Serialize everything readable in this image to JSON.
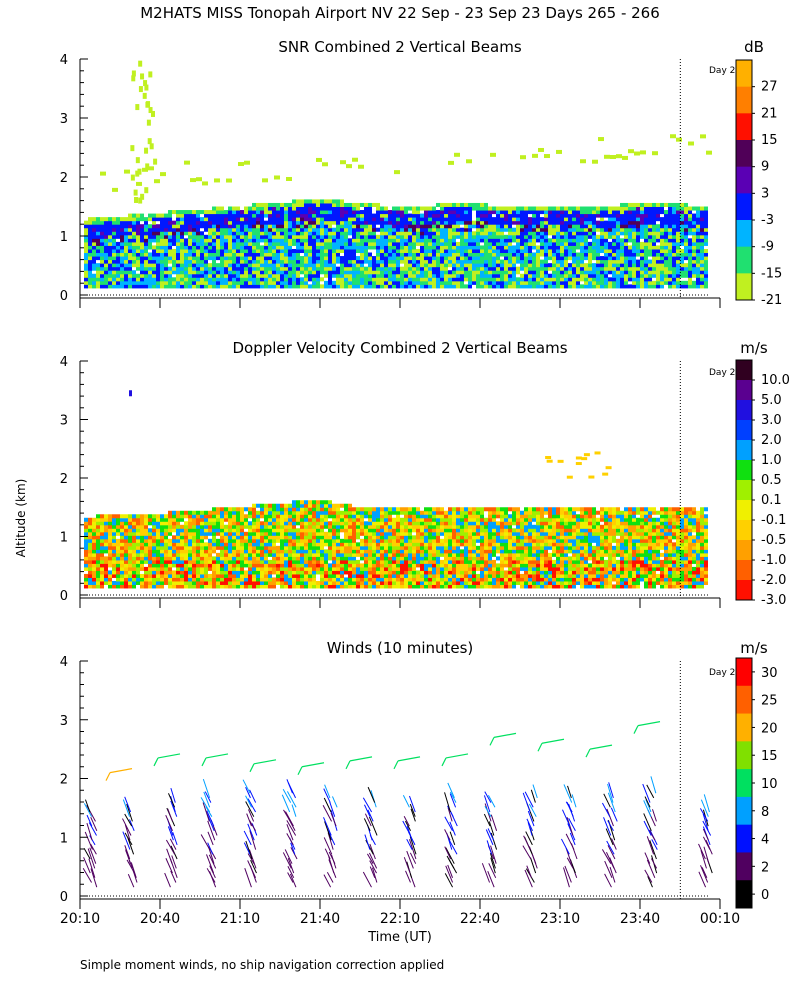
{
  "title": "M2HATS MISS Tonopah Airport NV  22 Sep - 23 Sep 23 Days 265 - 266",
  "shared": {
    "ylabel": "Altitude (km)",
    "xlabel": "Time (UT)",
    "x_ticks": [
      "20:10",
      "20:40",
      "21:10",
      "21:40",
      "22:10",
      "22:40",
      "23:10",
      "23:40",
      "00:10"
    ],
    "y_ticks": [
      "0",
      "1",
      "2",
      "3",
      "4"
    ],
    "x_range_hours": [
      20.1667,
      24.1667
    ],
    "ylim": [
      0,
      4
    ],
    "day_marker_label": "Day 2",
    "day_marker_time_hours": 24.0
  },
  "footnote": "Simple moment winds, no ship navigation correction applied",
  "chart_data": [
    {
      "type": "heatmap",
      "title": "SNR Combined 2 Vertical Beams",
      "units": "dB",
      "colorbar_labels": [
        "27",
        "21",
        "15",
        "9",
        "3",
        "-3",
        "-9",
        "-15",
        "-21"
      ],
      "colorbar_colors": [
        "#ffb000",
        "#ff7f00",
        "#ff1000",
        "#500058",
        "#5a00b4",
        "#0018ff",
        "#00b4ff",
        "#20e070",
        "#c0f020"
      ],
      "boundary_layer_top_km": [
        1.25,
        1.3,
        1.35,
        1.4,
        1.45,
        1.5,
        1.55,
        1.6,
        1.55,
        1.5,
        1.45,
        1.55,
        1.5,
        1.5,
        1.5,
        1.45,
        1.5,
        1.55,
        1.5,
        1.5
      ],
      "elevated_layer_km": [
        2.4,
        2.5,
        2.55,
        2.6
      ]
    },
    {
      "type": "heatmap",
      "title": "Doppler Velocity Combined 2 Vertical Beams",
      "units": "m/s",
      "colorbar_labels": [
        "10.0",
        "5.0",
        "3.0",
        "2.0",
        "1.0",
        "0.5",
        "0.1",
        "-0.1",
        "-0.5",
        "-1.0",
        "-2.0",
        "-3.0"
      ],
      "colorbar_colors": [
        "#300020",
        "#5a0090",
        "#2010e0",
        "#0040ff",
        "#00a0ff",
        "#10e010",
        "#a0f000",
        "#f0f000",
        "#ffd000",
        "#ffa000",
        "#ff6000",
        "#ff1000"
      ],
      "boundary_layer_top_km": [
        1.3,
        1.35,
        1.35,
        1.4,
        1.45,
        1.5,
        1.55,
        1.6,
        1.5,
        1.5,
        1.45,
        1.5,
        1.5,
        1.45,
        1.45,
        1.5,
        1.45,
        1.5,
        1.45,
        1.5
      ]
    },
    {
      "type": "scatter",
      "subtype": "wind_barbs",
      "title": "Winds (10 minutes)",
      "units": "m/s",
      "colorbar_labels": [
        "30",
        "25",
        "20",
        "15",
        "10",
        "8",
        "4",
        "2",
        "0"
      ],
      "colorbar_colors": [
        "#ff0000",
        "#ff6000",
        "#ffb000",
        "#80e000",
        "#00e060",
        "#00a0ff",
        "#0010ff",
        "#500060",
        "#000000"
      ],
      "profile_times_hours": [
        20.25,
        20.5,
        20.75,
        21.0,
        21.25,
        21.5,
        21.75,
        22.0,
        22.25,
        22.5,
        22.75,
        23.0,
        23.25,
        23.5,
        23.75,
        24.1
      ],
      "profile_top_km": [
        1.5,
        1.5,
        1.65,
        1.75,
        1.8,
        1.8,
        1.75,
        1.65,
        1.55,
        1.75,
        1.65,
        1.75,
        1.75,
        1.75,
        1.8,
        1.5
      ],
      "upper_level_km": [
        2.1,
        2.35,
        2.35,
        2.25,
        2.2,
        2.3,
        2.3,
        2.35,
        2.7,
        2.6,
        2.5,
        2.9
      ]
    }
  ]
}
